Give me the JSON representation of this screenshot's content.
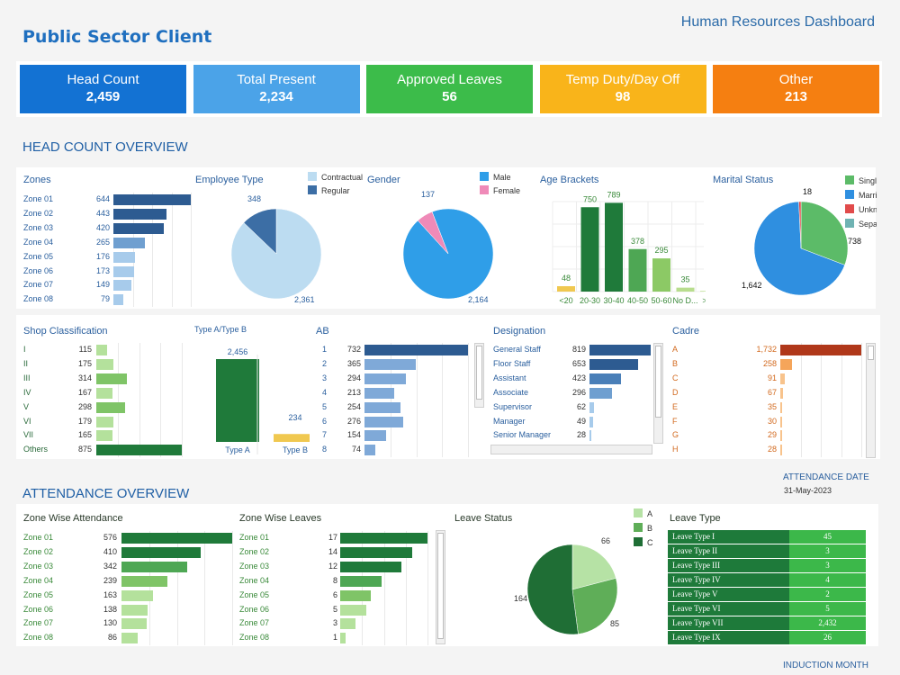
{
  "header": {
    "client": "Public Sector Client",
    "dashboard": "Human Resources Dashboard"
  },
  "kpis": [
    {
      "label": "Head Count",
      "value": "2,459",
      "color": "#1372d3"
    },
    {
      "label": "Total Present",
      "value": "2,234",
      "color": "#4ba3e8"
    },
    {
      "label": "Approved Leaves",
      "value": "56",
      "color": "#3cbc4a"
    },
    {
      "label": "Temp Duty/Day Off",
      "value": "98",
      "color": "#f9b41a"
    },
    {
      "label": "Other",
      "value": "213",
      "color": "#f57f11"
    }
  ],
  "sections": {
    "head_count": "HEAD COUNT OVERVIEW",
    "attendance": "ATTENDANCE OVERVIEW"
  },
  "panels": {
    "zones": "Zones",
    "employee_type": "Employee Type",
    "gender": "Gender",
    "age_brackets": "Age Brackets",
    "marital": "Marital Status",
    "shop": "Shop Classification",
    "typeab": "Type A/Type B",
    "ab": "AB",
    "designation": "Designation",
    "cadre": "Cadre",
    "zone_att": "Zone Wise Attendance",
    "zone_leaves": "Zone Wise Leaves",
    "leave_status": "Leave Status",
    "leave_type": "Leave Type"
  },
  "attendance_date": {
    "label": "ATTENDANCE DATE",
    "value": "31-May-2023"
  },
  "induction_month": "INDUCTION MONTH",
  "chart_data": [
    {
      "id": "zones",
      "type": "bar",
      "categories": [
        "Zone 01",
        "Zone 02",
        "Zone 03",
        "Zone 04",
        "Zone 05",
        "Zone 06",
        "Zone 07",
        "Zone 08"
      ],
      "values": [
        644,
        443,
        420,
        265,
        176,
        173,
        149,
        79
      ],
      "labels": [
        "644",
        "443",
        "420",
        "265",
        "176",
        "173",
        "149",
        "79"
      ]
    },
    {
      "id": "employee_type",
      "type": "pie",
      "categories": [
        "Contractual",
        "Regular"
      ],
      "values": [
        2361,
        348
      ],
      "labels": [
        "2,361",
        "348"
      ],
      "colors": [
        "#bcdcf1",
        "#3c6ea5"
      ]
    },
    {
      "id": "gender",
      "type": "pie",
      "categories": [
        "Male",
        "Female"
      ],
      "values": [
        2164,
        137
      ],
      "labels": [
        "2,164",
        "137"
      ],
      "colors": [
        "#2f9ee8",
        "#ef8ab8"
      ]
    },
    {
      "id": "age",
      "type": "bar",
      "categories": [
        "<20",
        "20-30",
        "30-40",
        "40-50",
        "50-60",
        "No D...",
        ">60"
      ],
      "values": [
        48,
        750,
        789,
        378,
        295,
        35,
        3
      ],
      "labels": [
        "48",
        "750",
        "789",
        "378",
        "295",
        "35",
        "3"
      ],
      "colors": [
        "#f0c850",
        "#1f7a3a",
        "#1f7a3a",
        "#4ea754",
        "#8cc965",
        "#b8dd8e",
        "#cfe9b0"
      ]
    },
    {
      "id": "marital",
      "type": "pie",
      "categories": [
        "Single",
        "Married",
        "Unknown",
        "Separated"
      ],
      "values": [
        738,
        1642,
        18,
        0
      ],
      "labels": [
        "738",
        "1,642",
        "18",
        ""
      ],
      "colors": [
        "#5cbb68",
        "#2f8fe0",
        "#e14b4b",
        "#6fb3b3"
      ]
    },
    {
      "id": "shop",
      "type": "bar",
      "categories": [
        "I",
        "II",
        "III",
        "IV",
        "V",
        "VI",
        "VII",
        "Others"
      ],
      "values": [
        115,
        175,
        314,
        167,
        298,
        179,
        165,
        875
      ],
      "labels": [
        "115",
        "175",
        "314",
        "167",
        "298",
        "179",
        "165",
        "875"
      ]
    },
    {
      "id": "typeab",
      "type": "bar",
      "categories": [
        "Type A",
        "Type B"
      ],
      "values": [
        2456,
        234
      ],
      "labels": [
        "2,456",
        "234"
      ],
      "colors": [
        "#1f7a3a",
        "#f0c850"
      ]
    },
    {
      "id": "ab",
      "type": "bar",
      "categories": [
        "1",
        "2",
        "3",
        "4",
        "5",
        "6",
        "7",
        "8"
      ],
      "values": [
        732,
        365,
        294,
        213,
        254,
        276,
        154,
        74
      ],
      "labels": [
        "732",
        "365",
        "294",
        "213",
        "254",
        "276",
        "154",
        "74"
      ]
    },
    {
      "id": "designation",
      "type": "bar",
      "categories": [
        "General Staff",
        "Floor Staff",
        "Assistant",
        "Associate",
        "Supervisor",
        "Manager",
        "Senior Manager"
      ],
      "values": [
        819,
        653,
        423,
        296,
        62,
        49,
        28
      ],
      "labels": [
        "819",
        "653",
        "423",
        "296",
        "62",
        "49",
        "28"
      ]
    },
    {
      "id": "cadre",
      "type": "bar",
      "categories": [
        "A",
        "B",
        "C",
        "D",
        "E",
        "F",
        "G",
        "H"
      ],
      "values": [
        1732,
        258,
        91,
        67,
        35,
        30,
        29,
        28
      ],
      "labels": [
        "1,732",
        "258",
        "91",
        "67",
        "35",
        "30",
        "29",
        "28"
      ]
    },
    {
      "id": "zone_att",
      "type": "bar",
      "categories": [
        "Zone 01",
        "Zone 02",
        "Zone 03",
        "Zone 04",
        "Zone 05",
        "Zone 06",
        "Zone 07",
        "Zone 08"
      ],
      "values": [
        576,
        410,
        342,
        239,
        163,
        138,
        130,
        86
      ],
      "labels": [
        "576",
        "410",
        "342",
        "239",
        "163",
        "138",
        "130",
        "86"
      ]
    },
    {
      "id": "zone_leaves",
      "type": "bar",
      "categories": [
        "Zone 01",
        "Zone 02",
        "Zone 03",
        "Zone 04",
        "Zone 05",
        "Zone 06",
        "Zone 07",
        "Zone 08"
      ],
      "values": [
        17,
        14,
        12,
        8,
        6,
        5,
        3,
        1
      ],
      "labels": [
        "17",
        "14",
        "12",
        "8",
        "6",
        "5",
        "3",
        "1"
      ]
    },
    {
      "id": "leave_status",
      "type": "pie",
      "categories": [
        "A",
        "B",
        "C"
      ],
      "values": [
        66,
        85,
        164
      ],
      "labels": [
        "66",
        "85",
        "164"
      ],
      "colors": [
        "#b6e2a5",
        "#5fae58",
        "#1f6e35"
      ]
    },
    {
      "id": "leave_type",
      "type": "table",
      "categories": [
        "Leave Type I",
        "Leave Type II",
        "Leave Type III",
        "Leave Type IV",
        "Leave Type V",
        "Leave Type VI",
        "Leave Type VII",
        "Leave Type IX"
      ],
      "values": [
        45,
        3,
        3,
        4,
        2,
        5,
        2432,
        26
      ],
      "labels": [
        "45",
        "3",
        "3",
        "4",
        "2",
        "5",
        "2,432",
        "26"
      ]
    }
  ]
}
